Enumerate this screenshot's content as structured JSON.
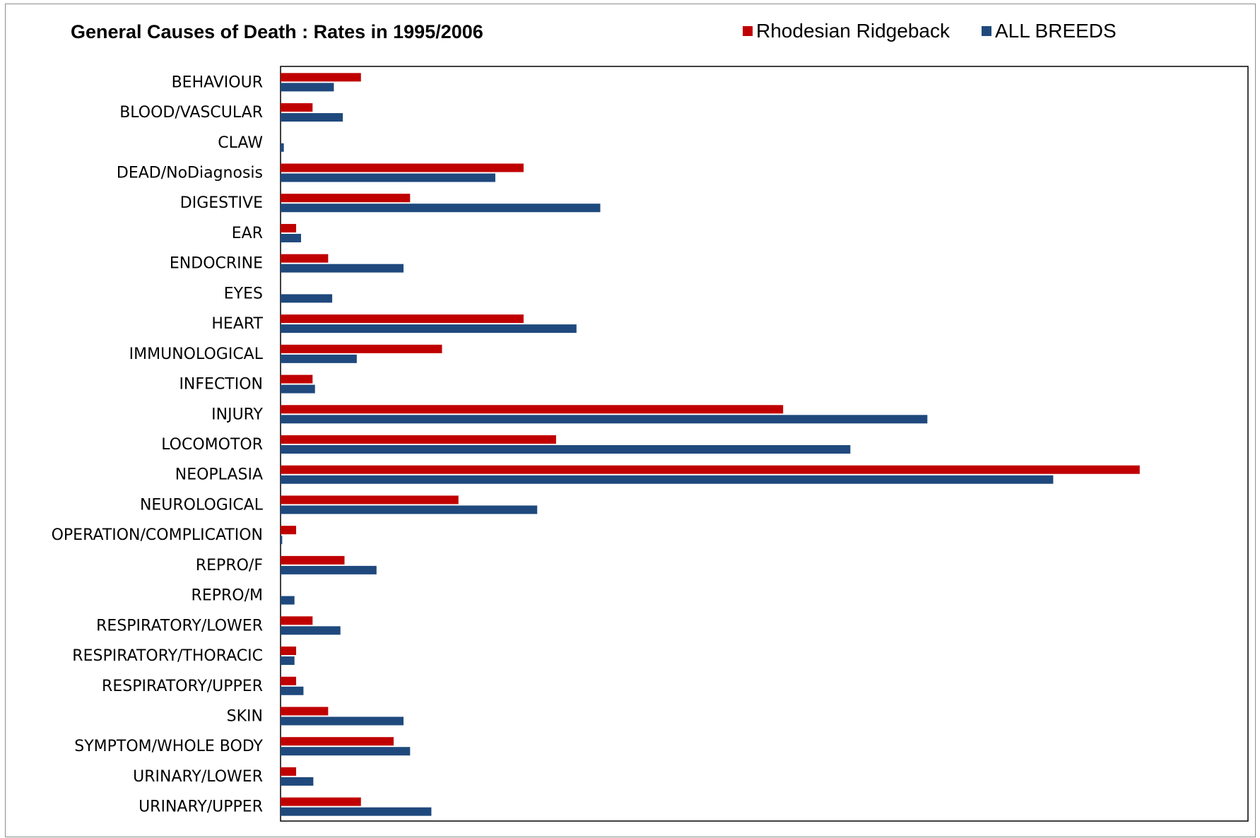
{
  "chart_data": {
    "type": "bar",
    "orientation": "horizontal",
    "title": "General Causes of Death : Rates in 1995/2006",
    "xlabel": "",
    "ylabel": "",
    "legend_position": "top-right",
    "grid": false,
    "xlim": [
      0,
      1
    ],
    "categories": [
      "BEHAVIOUR",
      "BLOOD/VASCULAR",
      "CLAW",
      "DEAD/NoDiagnosis",
      "DIGESTIVE",
      "EAR",
      "ENDOCRINE",
      "EYES",
      "HEART",
      "IMMUNOLOGICAL",
      "INFECTION",
      "INJURY",
      "LOCOMOTOR",
      "NEOPLASIA",
      "NEUROLOGICAL",
      "OPERATION/COMPLICATION",
      "REPRO/F",
      "REPRO/M",
      "RESPIRATORY/LOWER",
      "RESPIRATORY/THORACIC",
      "RESPIRATORY/UPPER",
      "SKIN",
      "SYMPTOM/WHOLE BODY",
      "URINARY/LOWER",
      "URINARY/UPPER"
    ],
    "series": [
      {
        "name": "Rhodesian Ridgeback",
        "color": "#c00000",
        "values": [
          0.0831,
          0.0331,
          0,
          0.2512,
          0.1339,
          0.0161,
          0.0492,
          0,
          0.2512,
          0.1669,
          0.0331,
          0.5195,
          0.2848,
          0.8881,
          0.1839,
          0.0161,
          0.0661,
          0,
          0.0331,
          0.0161,
          0.0161,
          0.0492,
          0.1169,
          0.0161,
          0.0831
        ]
      },
      {
        "name": "ALL BREEDS",
        "color": "#1f497d",
        "values": [
          0.0551,
          0.0644,
          0.0034,
          0.222,
          0.3305,
          0.0212,
          0.1271,
          0.0534,
          0.3059,
          0.0788,
          0.0356,
          0.6686,
          0.589,
          0.7987,
          0.2653,
          0.0017,
          0.0992,
          0.0144,
          0.0619,
          0.0144,
          0.0237,
          0.1271,
          0.1339,
          0.0339,
          0.1559
        ]
      }
    ]
  }
}
